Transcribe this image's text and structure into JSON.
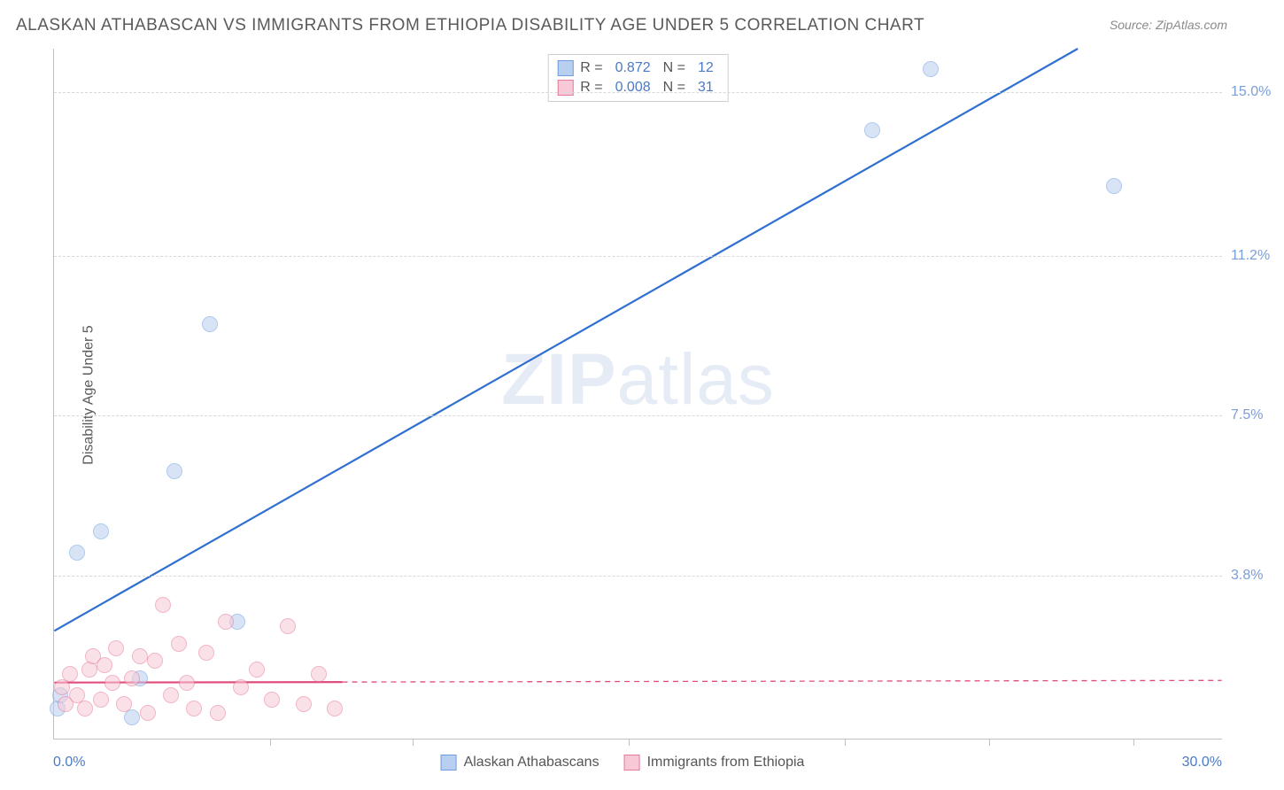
{
  "title": "ALASKAN ATHABASCAN VS IMMIGRANTS FROM ETHIOPIA DISABILITY AGE UNDER 5 CORRELATION CHART",
  "source": "Source: ZipAtlas.com",
  "ylabel": "Disability Age Under 5",
  "watermark_a": "ZIP",
  "watermark_b": "atlas",
  "chart": {
    "type": "scatter_with_regression",
    "background_color": "#ffffff",
    "grid_color": "#d8d8d8",
    "axis_color": "#c0c0c0",
    "xlim": [
      0.0,
      30.0
    ],
    "ylim": [
      0.0,
      16.0
    ],
    "x_min_label": "0.0%",
    "x_max_label": "30.0%",
    "x_tick_positions": [
      5.55,
      9.2,
      14.75,
      20.3,
      24.0,
      27.7
    ],
    "y_ticks": [
      {
        "v": 3.8,
        "label": "3.8%"
      },
      {
        "v": 7.5,
        "label": "7.5%"
      },
      {
        "v": 11.2,
        "label": "11.2%"
      },
      {
        "v": 15.0,
        "label": "15.0%"
      }
    ],
    "marker_radius": 9,
    "marker_alpha": 0.55,
    "series": [
      {
        "id": "athabascan",
        "name": "Alaskan Athabascans",
        "color": "#6e9de0",
        "fill": "#b9cff0",
        "stroke": "#6e9de0",
        "R": "0.872",
        "N": "12",
        "regression": {
          "x1": 0.0,
          "y1": 2.5,
          "x2": 26.3,
          "y2": 16.0,
          "width": 2.2,
          "color": "#2f6fd1"
        },
        "points": [
          {
            "x": 0.1,
            "y": 0.7
          },
          {
            "x": 0.15,
            "y": 1.0
          },
          {
            "x": 0.6,
            "y": 4.3
          },
          {
            "x": 1.2,
            "y": 4.8
          },
          {
            "x": 2.0,
            "y": 0.5
          },
          {
            "x": 2.2,
            "y": 1.4
          },
          {
            "x": 3.1,
            "y": 6.2
          },
          {
            "x": 4.0,
            "y": 9.6
          },
          {
            "x": 4.7,
            "y": 2.7
          },
          {
            "x": 21.0,
            "y": 14.1
          },
          {
            "x": 22.5,
            "y": 15.5
          },
          {
            "x": 27.2,
            "y": 12.8
          }
        ]
      },
      {
        "id": "ethiopia",
        "name": "Immigrants from Ethiopia",
        "color": "#e89bb2",
        "fill": "#f7c9d6",
        "stroke": "#e67a9a",
        "R": "0.008",
        "N": "31",
        "regression": {
          "x1": 0.0,
          "y1": 1.3,
          "x2": 30.0,
          "y2": 1.35,
          "width": 2.2,
          "color": "#e04e7e",
          "dash_after_x": 7.4
        },
        "points": [
          {
            "x": 0.2,
            "y": 1.2
          },
          {
            "x": 0.3,
            "y": 0.8
          },
          {
            "x": 0.4,
            "y": 1.5
          },
          {
            "x": 0.6,
            "y": 1.0
          },
          {
            "x": 0.8,
            "y": 0.7
          },
          {
            "x": 0.9,
            "y": 1.6
          },
          {
            "x": 1.0,
            "y": 1.9
          },
          {
            "x": 1.2,
            "y": 0.9
          },
          {
            "x": 1.3,
            "y": 1.7
          },
          {
            "x": 1.5,
            "y": 1.3
          },
          {
            "x": 1.6,
            "y": 2.1
          },
          {
            "x": 1.8,
            "y": 0.8
          },
          {
            "x": 2.0,
            "y": 1.4
          },
          {
            "x": 2.2,
            "y": 1.9
          },
          {
            "x": 2.4,
            "y": 0.6
          },
          {
            "x": 2.6,
            "y": 1.8
          },
          {
            "x": 2.8,
            "y": 3.1
          },
          {
            "x": 3.0,
            "y": 1.0
          },
          {
            "x": 3.2,
            "y": 2.2
          },
          {
            "x": 3.4,
            "y": 1.3
          },
          {
            "x": 3.6,
            "y": 0.7
          },
          {
            "x": 3.9,
            "y": 2.0
          },
          {
            "x": 4.2,
            "y": 0.6
          },
          {
            "x": 4.4,
            "y": 2.7
          },
          {
            "x": 4.8,
            "y": 1.2
          },
          {
            "x": 5.2,
            "y": 1.6
          },
          {
            "x": 5.6,
            "y": 0.9
          },
          {
            "x": 6.0,
            "y": 2.6
          },
          {
            "x": 6.4,
            "y": 0.8
          },
          {
            "x": 6.8,
            "y": 1.5
          },
          {
            "x": 7.2,
            "y": 0.7
          }
        ]
      }
    ],
    "legend_top_labels": {
      "R": "R  =",
      "N": "N  ="
    }
  }
}
